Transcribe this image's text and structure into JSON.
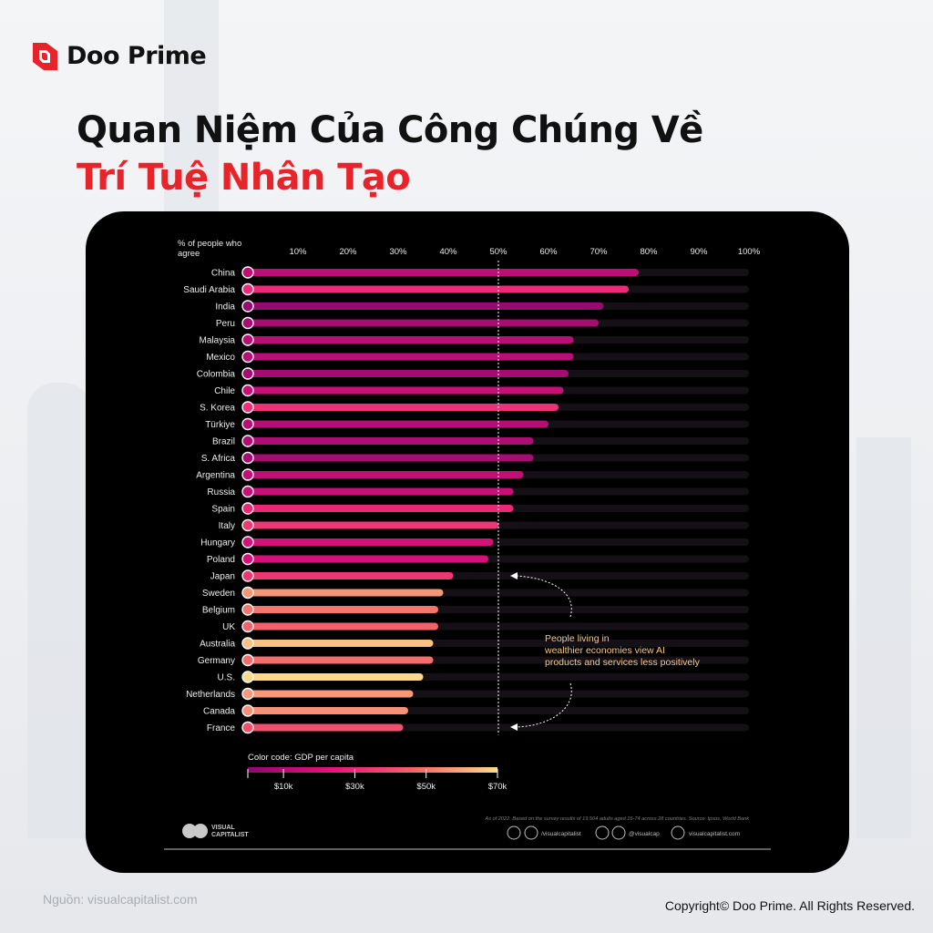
{
  "brand": {
    "name": "Doo Prime"
  },
  "title": {
    "line1": "Quan Niệm Của Công Chúng Về",
    "line2": "Trí Tuệ Nhân Tạo"
  },
  "footer": {
    "source": "Nguồn: visualcapitalist.com",
    "copyright": "Copyright© Doo Prime. All Rights Reserved."
  },
  "chart_data": {
    "type": "bar",
    "orientation": "horizontal",
    "ylabel": "% of people who agree",
    "xlim": [
      0,
      100
    ],
    "x_ticks": [
      "10%",
      "20%",
      "30%",
      "40%",
      "50%",
      "60%",
      "70%",
      "80%",
      "90%",
      "100%"
    ],
    "reference_line": 50,
    "categories": [
      "China",
      "Saudi Arabia",
      "India",
      "Peru",
      "Malaysia",
      "Mexico",
      "Colombia",
      "Chile",
      "S. Korea",
      "Türkiye",
      "Brazil",
      "S. Africa",
      "Argentina",
      "Russia",
      "Spain",
      "Italy",
      "Hungary",
      "Poland",
      "Japan",
      "Sweden",
      "Belgium",
      "UK",
      "Australia",
      "Germany",
      "U.S.",
      "Netherlands",
      "Canada",
      "France"
    ],
    "values": [
      78,
      76,
      71,
      70,
      65,
      65,
      64,
      63,
      62,
      60,
      57,
      57,
      55,
      53,
      53,
      50,
      49,
      48,
      41,
      39,
      38,
      38,
      37,
      37,
      35,
      33,
      32,
      31
    ],
    "gdp_per_capita_k": [
      12.7,
      30.4,
      2.4,
      7.1,
      12.0,
      11.5,
      6.6,
      15.4,
      32.4,
      10.6,
      8.9,
      6.8,
      13.7,
      15.3,
      29.7,
      34.1,
      18.4,
      18.7,
      34.0,
      56.4,
      49.9,
      46.1,
      65.1,
      48.7,
      76.3,
      57.0,
      55.5,
      40.9
    ],
    "annotation": "People living in wealthier economies view AI products and services less positively",
    "color_scale": {
      "title": "Color code: GDP per capita",
      "ticks": [
        "$10k",
        "$30k",
        "$50k",
        "$70k"
      ],
      "tick_values": [
        10,
        30,
        50,
        70
      ],
      "domain": [
        0,
        70
      ],
      "colors": [
        "#8b0a6e",
        "#e8127c",
        "#f3646a",
        "#fcd98a"
      ]
    },
    "footnote": "As of 2022. Based on the survey results of 19,504 adults aged 16-74 across 28 countries. Source: Ipsos, World Bank",
    "publisher": "VISUAL CAPITALIST",
    "social": [
      "/visualcapitalist",
      "@visualcap",
      "visualcapitalist.com"
    ]
  }
}
